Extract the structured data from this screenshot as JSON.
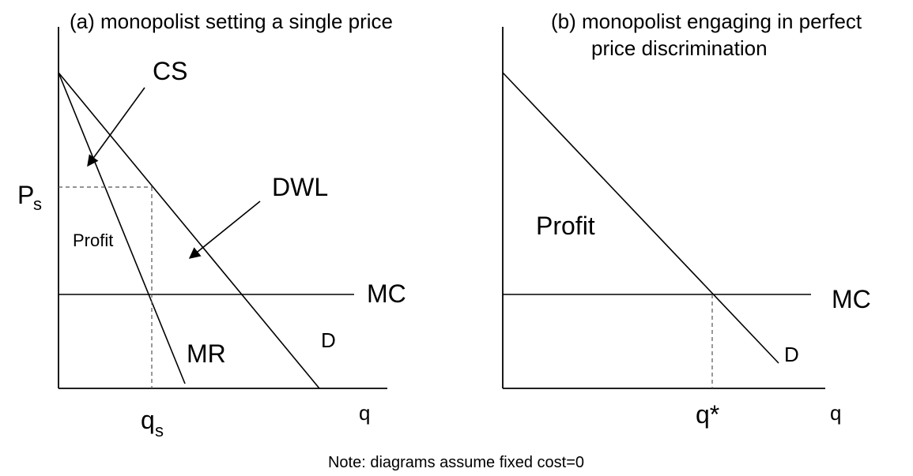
{
  "panel_a": {
    "title": "(a) monopolist setting a single price",
    "price_label": "P",
    "price_sub": "s",
    "qty_label": "q",
    "qty_sub": "s",
    "x_axis_label": "q",
    "cs_label": "CS",
    "dwl_label": "DWL",
    "profit_label": "Profit",
    "mc_label": "MC",
    "mr_label": "MR",
    "d_label": "D"
  },
  "panel_b": {
    "title_line1": "(b) monopolist engaging in perfect",
    "title_line2": "price discrimination",
    "profit_label": "Profit",
    "mc_label": "MC",
    "d_label": "D",
    "qstar_label": "q*",
    "x_axis_label": "q"
  },
  "note": "Note: diagrams assume fixed cost=0"
}
